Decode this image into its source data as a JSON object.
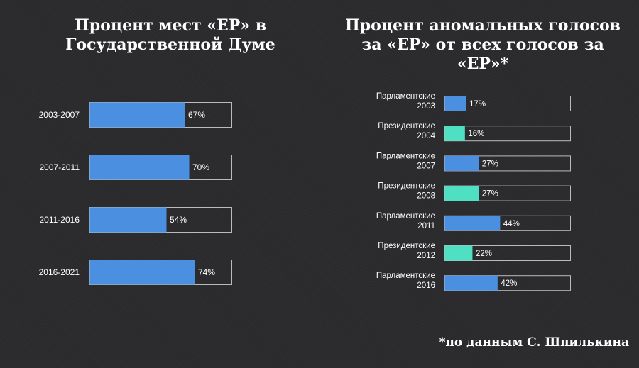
{
  "chart_data": [
    {
      "type": "bar",
      "orientation": "horizontal",
      "title": "Процент мест «ЕР» в Государственной Думе",
      "categories": [
        "2003-2007",
        "2007-2011",
        "2011-2016",
        "2016-2021"
      ],
      "values": [
        67,
        70,
        54,
        74
      ],
      "value_labels": [
        "67%",
        "70%",
        "54%",
        "74%"
      ],
      "xlim": [
        0,
        100
      ],
      "grid": false,
      "bar_color": "#4a8fe0"
    },
    {
      "type": "bar",
      "orientation": "horizontal",
      "title": "Процент аномальных голосов за «ЕР» от всех голосов за «ЕР»*",
      "categories": [
        [
          "Парламентские",
          "2003"
        ],
        [
          "Президентские",
          "2004"
        ],
        [
          "Парламентские",
          "2007"
        ],
        [
          "Президентские",
          "2008"
        ],
        [
          "Парламентские",
          "2011"
        ],
        [
          "Президентские",
          "2012"
        ],
        [
          "Парламентские",
          "2016"
        ]
      ],
      "values": [
        17,
        16,
        27,
        27,
        44,
        22,
        42
      ],
      "value_labels": [
        "17%",
        "16%",
        "27%",
        "27%",
        "44%",
        "22%",
        "42%"
      ],
      "bar_colors": [
        "#4a8fe0",
        "#4fe0c4",
        "#4a8fe0",
        "#4fe0c4",
        "#4a8fe0",
        "#4fe0c4",
        "#4a8fe0"
      ],
      "xlim": [
        0,
        100
      ],
      "grid": false
    }
  ],
  "footnote": "*по данным С. Шпилькина",
  "colors": {
    "background": "#2b2b2d",
    "parliamentary": "#4a8fe0",
    "presidential": "#4fe0c4",
    "frame": "#bbbbbb",
    "text": "#ffffff"
  }
}
